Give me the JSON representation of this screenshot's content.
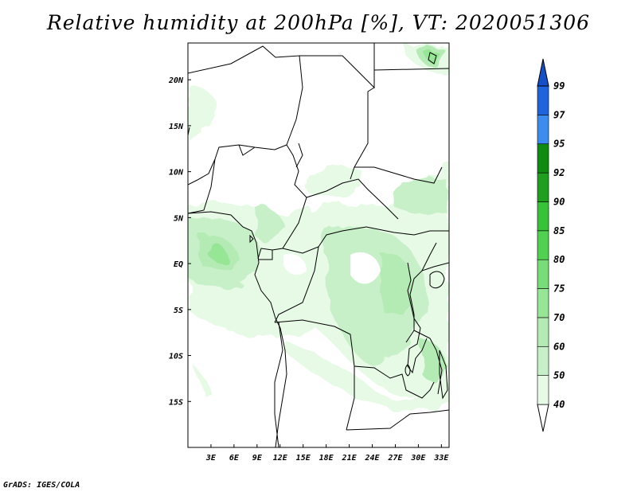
{
  "title": "Relative humidity at 200hPa [%], VT: 2020051306",
  "credit": "GrADS: IGES/COLA",
  "chart_data": {
    "type": "heatmap",
    "variable": "Relative humidity",
    "level": "200hPa",
    "units": "%",
    "valid_time": "2020051306",
    "lon_range": [
      0,
      34
    ],
    "lat_range": [
      -20,
      24
    ],
    "lon_ticks": [
      3,
      6,
      9,
      12,
      15,
      18,
      21,
      24,
      27,
      30,
      33
    ],
    "lon_tick_labels": [
      "3E",
      "6E",
      "9E",
      "12E",
      "15E",
      "18E",
      "21E",
      "24E",
      "27E",
      "30E",
      "33E"
    ],
    "lat_ticks": [
      20,
      15,
      10,
      5,
      0,
      -5,
      -10,
      -15
    ],
    "lat_tick_labels": [
      "20N",
      "15N",
      "10N",
      "5N",
      "EQ",
      "5S",
      "10S",
      "15S"
    ],
    "colorbar": {
      "levels": [
        40,
        50,
        60,
        70,
        75,
        80,
        85,
        90,
        92,
        95,
        97,
        99
      ],
      "colors": [
        "#ffffff",
        "#e6fae6",
        "#c8f0c8",
        "#b4ebb4",
        "#96e696",
        "#78dc78",
        "#50d250",
        "#37c337",
        "#1ea01e",
        "#0f8c0f",
        "#3c8cf0",
        "#1e64dc",
        "#1450c8"
      ]
    }
  }
}
